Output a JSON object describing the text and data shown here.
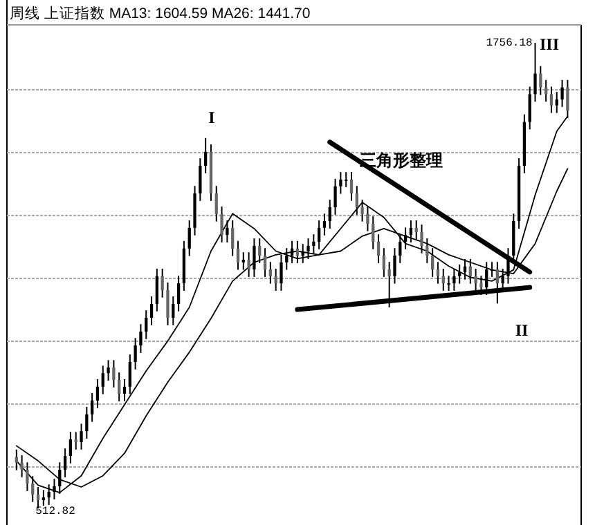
{
  "chart_data": {
    "type": "candlestick",
    "title": "周线 上证指数 MA13: 1604.59 MA26: 1441.70",
    "grid": true,
    "categories": [
      null,
      null,
      null,
      null,
      null,
      null,
      null,
      null,
      null,
      null,
      null,
      null,
      null,
      null,
      null,
      null,
      null,
      null,
      null,
      null,
      null,
      null,
      null,
      null,
      null,
      null,
      null,
      null,
      null,
      null,
      null,
      null,
      null,
      null,
      null,
      null,
      null,
      null,
      null,
      null,
      null,
      null,
      null,
      null,
      null,
      null,
      null,
      null,
      null,
      null,
      null,
      null,
      null,
      null,
      null,
      null,
      null,
      null,
      null,
      null,
      null,
      null,
      null,
      null,
      null,
      null,
      null,
      null,
      null,
      null,
      null,
      null,
      null,
      null,
      null,
      null,
      null,
      null,
      null,
      null,
      null,
      null,
      null,
      null,
      null,
      null,
      null,
      null,
      null,
      null,
      null,
      null,
      null,
      null,
      null,
      null,
      null,
      null,
      null,
      null,
      null,
      null,
      null
    ],
    "ohlc": [
      [
        650,
        670,
        615,
        635
      ],
      [
        635,
        655,
        596,
        616
      ],
      [
        616,
        636,
        559,
        579
      ],
      [
        579,
        599,
        530,
        550
      ],
      [
        550,
        570,
        512.82,
        535
      ],
      [
        535,
        562,
        520,
        542
      ],
      [
        542,
        577,
        522,
        557
      ],
      [
        557,
        592,
        537,
        572
      ],
      [
        572,
        636,
        552,
        616
      ],
      [
        616,
        673,
        596,
        653
      ],
      [
        653,
        717,
        633,
        697
      ],
      [
        697,
        717,
        670,
        690
      ],
      [
        690,
        739,
        670,
        719
      ],
      [
        719,
        784,
        699,
        764
      ],
      [
        764,
        821,
        744,
        801
      ],
      [
        801,
        858,
        781,
        838
      ],
      [
        838,
        894,
        818,
        874
      ],
      [
        874,
        909,
        854,
        889
      ],
      [
        889,
        909,
        836,
        856
      ],
      [
        856,
        876,
        799,
        819
      ],
      [
        819,
        858,
        799,
        838
      ],
      [
        838,
        924,
        818,
        904
      ],
      [
        904,
        968,
        884,
        948
      ],
      [
        948,
        1005,
        928,
        985
      ],
      [
        985,
        1042,
        965,
        1022
      ],
      [
        1022,
        1079,
        1002,
        1059
      ],
      [
        1059,
        1153,
        1039,
        1133
      ],
      [
        1133,
        1153,
        1076,
        1096
      ],
      [
        1096,
        1116,
        1002,
        1022
      ],
      [
        1022,
        1079,
        1002,
        1059
      ],
      [
        1059,
        1134,
        1039,
        1114
      ],
      [
        1114,
        1227,
        1094,
        1207
      ],
      [
        1207,
        1282,
        1187,
        1262
      ],
      [
        1262,
        1374,
        1242,
        1354
      ],
      [
        1354,
        1448,
        1334,
        1428
      ],
      [
        1428,
        1502,
        1408,
        1465
      ],
      [
        1465,
        1485,
        1334,
        1354
      ],
      [
        1354,
        1374,
        1279,
        1299
      ],
      [
        1299,
        1319,
        1223,
        1243
      ],
      [
        1243,
        1282,
        1223,
        1262
      ],
      [
        1262,
        1282,
        1187,
        1207
      ],
      [
        1207,
        1227,
        1150,
        1170
      ],
      [
        1170,
        1197,
        1150,
        1177
      ],
      [
        1177,
        1197,
        1131,
        1151
      ],
      [
        1151,
        1234,
        1131,
        1214
      ],
      [
        1214,
        1234,
        1168,
        1188
      ],
      [
        1188,
        1208,
        1131,
        1151
      ],
      [
        1151,
        1171,
        1113,
        1133
      ],
      [
        1133,
        1153,
        1094,
        1114
      ],
      [
        1114,
        1190,
        1094,
        1170
      ],
      [
        1170,
        1208,
        1150,
        1188
      ],
      [
        1188,
        1227,
        1168,
        1207
      ],
      [
        1207,
        1227,
        1168,
        1188
      ],
      [
        1188,
        1219,
        1168,
        1199
      ],
      [
        1199,
        1234,
        1179,
        1214
      ],
      [
        1214,
        1245,
        1194,
        1225
      ],
      [
        1225,
        1282,
        1205,
        1262
      ],
      [
        1262,
        1300,
        1242,
        1280
      ],
      [
        1280,
        1337,
        1260,
        1317
      ],
      [
        1317,
        1393,
        1297,
        1373
      ],
      [
        1373,
        1411,
        1353,
        1391
      ],
      [
        1391,
        1411,
        1371,
        1391
      ],
      [
        1391,
        1411,
        1334,
        1354
      ],
      [
        1354,
        1374,
        1297,
        1317
      ],
      [
        1317,
        1337,
        1279,
        1299
      ],
      [
        1299,
        1319,
        1253,
        1273
      ],
      [
        1273,
        1293,
        1205,
        1225
      ],
      [
        1225,
        1245,
        1168,
        1188
      ],
      [
        1188,
        1208,
        1131,
        1151
      ],
      [
        1151,
        1171,
        1050,
        1133
      ],
      [
        1133,
        1208,
        1113,
        1188
      ],
      [
        1188,
        1245,
        1168,
        1225
      ],
      [
        1225,
        1263,
        1205,
        1243
      ],
      [
        1243,
        1282,
        1223,
        1262
      ],
      [
        1262,
        1282,
        1231,
        1251
      ],
      [
        1251,
        1271,
        1194,
        1214
      ],
      [
        1214,
        1234,
        1168,
        1188
      ],
      [
        1188,
        1208,
        1131,
        1151
      ],
      [
        1151,
        1171,
        1113,
        1133
      ],
      [
        1133,
        1153,
        1094,
        1114
      ],
      [
        1114,
        1134,
        1094,
        1114
      ],
      [
        1114,
        1153,
        1094,
        1133
      ],
      [
        1133,
        1164,
        1113,
        1144
      ],
      [
        1144,
        1179,
        1124,
        1159
      ],
      [
        1159,
        1179,
        1113,
        1133
      ],
      [
        1133,
        1153,
        1094,
        1114
      ],
      [
        1114,
        1134,
        1083,
        1103
      ],
      [
        1103,
        1171,
        1083,
        1151
      ],
      [
        1151,
        1171,
        1131,
        1151
      ],
      [
        1151,
        1171,
        1060,
        1114
      ],
      [
        1114,
        1153,
        1094,
        1133
      ],
      [
        1133,
        1208,
        1113,
        1188
      ],
      [
        1188,
        1300,
        1168,
        1280
      ],
      [
        1280,
        1448,
        1260,
        1428
      ],
      [
        1428,
        1565,
        1408,
        1545
      ],
      [
        1545,
        1639,
        1525,
        1619
      ],
      [
        1619,
        1756.18,
        1599,
        1674
      ],
      [
        1674,
        1694,
        1617,
        1637
      ],
      [
        1637,
        1657,
        1599,
        1619
      ],
      [
        1619,
        1639,
        1569,
        1589
      ],
      [
        1589,
        1625,
        1569,
        1605
      ],
      [
        1605,
        1657,
        1585,
        1637
      ],
      [
        1637,
        1657,
        1555,
        1575
      ]
    ],
    "series": [
      {
        "type": "line",
        "color": "#000000",
        "values": [
          640,
          null,
          null,
          null,
          575,
          null,
          null,
          null,
          555,
          null,
          null,
          null,
          600,
          null,
          null,
          null,
          700,
          null,
          null,
          null,
          790,
          null,
          null,
          null,
          880,
          null,
          null,
          null,
          960,
          null,
          null,
          null,
          1050,
          null,
          null,
          null,
          1200,
          null,
          null,
          null,
          1300,
          null,
          null,
          null,
          1260,
          null,
          null,
          null,
          1200,
          null,
          null,
          null,
          1180,
          null,
          null,
          null,
          1190,
          null,
          null,
          null,
          1260,
          null,
          null,
          null,
          1330,
          null,
          null,
          null,
          1290,
          null,
          null,
          null,
          1220,
          null,
          null,
          null,
          1200,
          null,
          null,
          null,
          1160,
          null,
          null,
          null,
          1130,
          null,
          null,
          null,
          1120,
          null,
          null,
          null,
          1150,
          null,
          null,
          null,
          1350,
          null,
          null,
          null,
          1520,
          null,
          1560
        ]
      },
      {
        "type": "line",
        "color": "#000000",
        "values": [
          680,
          null,
          null,
          null,
          640,
          null,
          null,
          null,
          590,
          null,
          null,
          null,
          570,
          null,
          null,
          null,
          600,
          null,
          null,
          null,
          660,
          null,
          null,
          null,
          760,
          null,
          null,
          null,
          850,
          null,
          null,
          null,
          930,
          null,
          null,
          null,
          1020,
          null,
          null,
          null,
          1120,
          null,
          null,
          null,
          1170,
          null,
          null,
          null,
          1190,
          null,
          null,
          null,
          1200,
          null,
          null,
          null,
          1190,
          null,
          null,
          null,
          1200,
          null,
          null,
          null,
          1240,
          null,
          null,
          null,
          1260,
          null,
          null,
          null,
          1240,
          null,
          null,
          null,
          1220,
          null,
          null,
          null,
          1190,
          null,
          null,
          null,
          1170,
          null,
          null,
          null,
          1150,
          null,
          null,
          null,
          1140,
          null,
          null,
          null,
          1220,
          null,
          null,
          null,
          1360,
          null,
          1420
        ]
      },
      {
        "type": "line",
        "color": "#000000",
        "values": [
          null,
          null,
          null,
          null,
          null,
          null,
          null,
          null,
          null,
          null,
          null,
          null,
          null,
          null,
          null,
          null,
          null,
          null,
          null,
          null,
          null,
          null,
          null,
          null,
          null,
          null,
          null,
          null,
          null,
          null,
          null,
          null,
          null,
          null,
          null,
          null,
          null,
          null,
          null,
          null,
          null,
          null,
          null,
          null,
          null,
          null,
          null,
          null,
          null,
          null,
          null,
          null,
          null,
          null,
          null,
          null,
          null,
          null,
          1491,
          null,
          null,
          null,
          null,
          null,
          null,
          null,
          null,
          null,
          null,
          null,
          null,
          null,
          null,
          null,
          null,
          null,
          null,
          null,
          null,
          null,
          null,
          null,
          null,
          null,
          null,
          null,
          null,
          null,
          null,
          null,
          null,
          null,
          null,
          null,
          null,
          1144,
          null,
          null,
          null,
          null,
          null,
          null,
          null
        ]
      },
      {
        "type": "line",
        "color": "#000000",
        "values": [
          null,
          null,
          null,
          null,
          null,
          null,
          null,
          null,
          null,
          null,
          null,
          null,
          null,
          null,
          null,
          null,
          null,
          null,
          null,
          null,
          null,
          null,
          null,
          null,
          null,
          null,
          null,
          null,
          null,
          null,
          null,
          null,
          null,
          null,
          null,
          null,
          null,
          null,
          null,
          null,
          null,
          null,
          null,
          null,
          null,
          null,
          null,
          null,
          null,
          null,
          null,
          null,
          1044,
          null,
          null,
          null,
          null,
          null,
          null,
          null,
          null,
          null,
          null,
          null,
          null,
          null,
          null,
          null,
          null,
          null,
          null,
          null,
          null,
          null,
          null,
          null,
          null,
          null,
          null,
          null,
          null,
          null,
          null,
          null,
          null,
          null,
          null,
          null,
          null,
          null,
          null,
          null,
          null,
          null,
          null,
          1103,
          null,
          null,
          null,
          null,
          null,
          null,
          null
        ]
      }
    ],
    "annotations": [
      "I",
      "II",
      "III",
      "三角形整理",
      "1756.18",
      "512.82"
    ]
  }
}
